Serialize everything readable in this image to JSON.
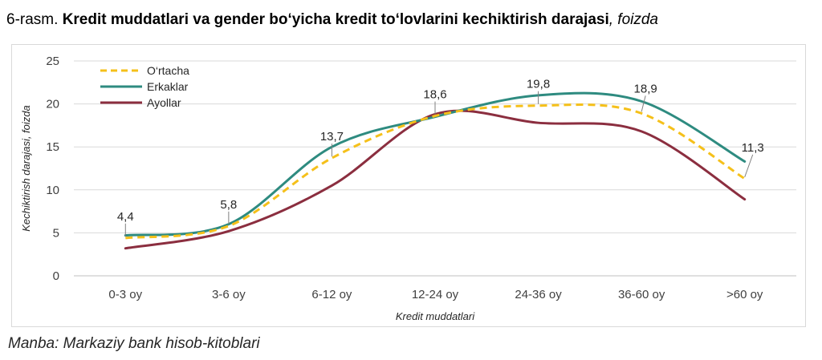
{
  "title": {
    "prefix": "6-rasm.",
    "main": "Kredit muddatlari va gender bo‘yicha kredit to‘lovlarini kechiktirish darajasi",
    "suffix": ", foizda"
  },
  "source": "Manba: Markaziy bank hisob-kitoblari",
  "colors": {
    "ortacha": "#f5c01a",
    "erkaklar": "#2e8b80",
    "ayollar": "#8b2e3f",
    "grid": "#d9d9d9",
    "axis_text": "#404040"
  },
  "chart_data": {
    "type": "line",
    "xlabel": "Kredit muddatlari",
    "ylabel": "Kechiktirish darajasi, foizda",
    "ylim": [
      0,
      25
    ],
    "yticks": [
      0,
      5,
      10,
      15,
      20,
      25
    ],
    "grid": true,
    "legend_position": "top-left",
    "categories": [
      "0-3 oy",
      "3-6 oy",
      "6-12 oy",
      "12-24 oy",
      "24-36 oy",
      "36-60 oy",
      ">60 oy"
    ],
    "series": [
      {
        "name": "O‘rtacha",
        "key": "ortacha",
        "style": "dashed",
        "values": [
          4.4,
          5.8,
          13.7,
          18.6,
          19.8,
          18.9,
          11.3
        ]
      },
      {
        "name": "Erkaklar",
        "key": "erkaklar",
        "style": "solid",
        "values": [
          4.7,
          6.0,
          15.0,
          18.5,
          21.0,
          20.3,
          13.3
        ]
      },
      {
        "name": "Ayollar",
        "key": "ayollar",
        "style": "solid",
        "values": [
          3.2,
          5.2,
          10.5,
          18.8,
          17.8,
          16.8,
          8.9
        ]
      }
    ],
    "data_labels": [
      {
        "category_index": 0,
        "text": "4,4"
      },
      {
        "category_index": 1,
        "text": "5,8"
      },
      {
        "category_index": 2,
        "text": "13,7"
      },
      {
        "category_index": 3,
        "text": "18,6"
      },
      {
        "category_index": 4,
        "text": "19,8"
      },
      {
        "category_index": 5,
        "text": "18,9"
      },
      {
        "category_index": 6,
        "text": "11,3"
      }
    ]
  }
}
